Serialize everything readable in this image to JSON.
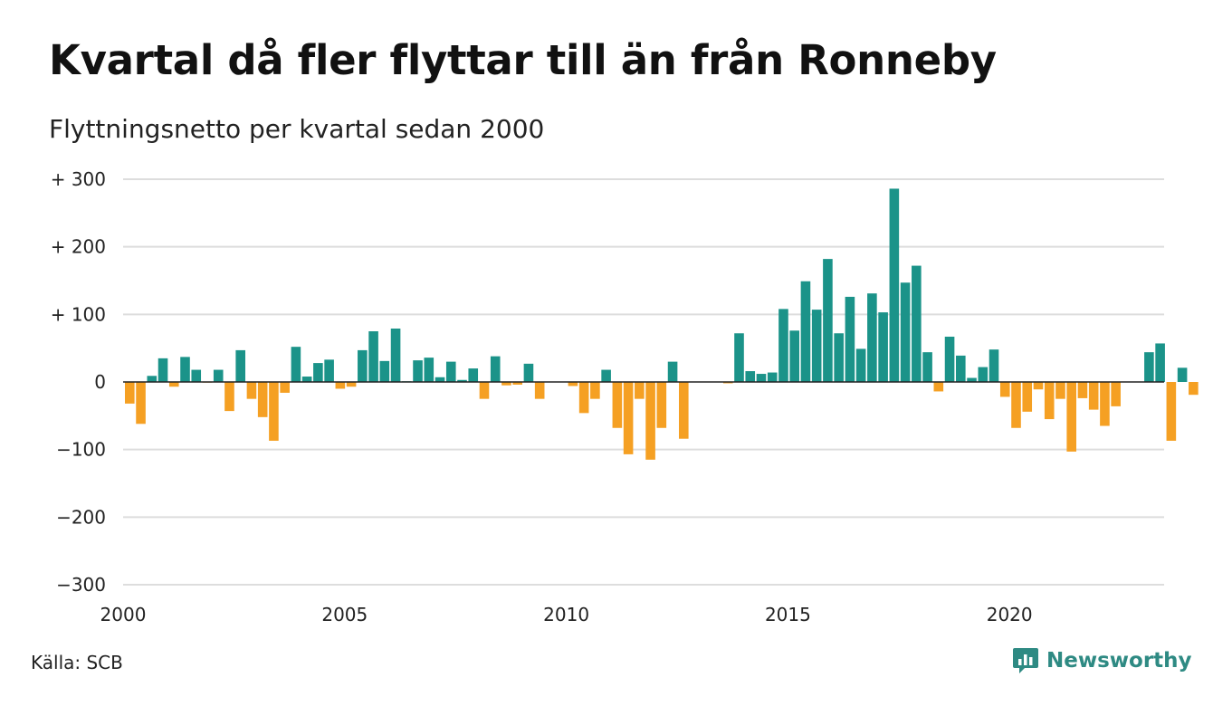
{
  "title": "Kvartal då fler flyttar till än från Ronneby",
  "subtitle": "Flyttningsnetto per kvartal sedan 2000",
  "source": "Källa: SCB",
  "brand": {
    "name": "Newsworthy"
  },
  "colors": {
    "positive": "#1b9389",
    "negative": "#f5a023",
    "grid": "#dddddd",
    "brand": "#2e8a83"
  },
  "chart_data": {
    "type": "bar",
    "xlabel": "",
    "ylabel": "",
    "ylim": [
      -300,
      300
    ],
    "y_ticks": [
      300,
      200,
      100,
      0,
      -100,
      -200,
      -300
    ],
    "y_tick_labels": [
      "+ 300",
      "+ 200",
      "+ 100",
      "0",
      "−100",
      "−200",
      "−300"
    ],
    "x_ticks": [
      "2000",
      "2005",
      "2010",
      "2015",
      "2020"
    ],
    "grid": true,
    "start_year": 2000,
    "values": [
      -32,
      -62,
      9,
      35,
      -7,
      37,
      18,
      -1,
      18,
      -43,
      47,
      -25,
      -52,
      -87,
      -16,
      52,
      8,
      28,
      33,
      -10,
      -7,
      47,
      75,
      31,
      79,
      1,
      32,
      36,
      7,
      30,
      3,
      20,
      -25,
      38,
      -5,
      -4,
      27,
      -25,
      0,
      0,
      -6,
      -46,
      -25,
      18,
      -68,
      -107,
      -25,
      -115,
      -68,
      30,
      -84,
      0,
      0,
      0,
      -2,
      72,
      16,
      12,
      14,
      108,
      76,
      149,
      107,
      182,
      72,
      126,
      49,
      131,
      103,
      286,
      147,
      172,
      44,
      -14,
      67,
      39,
      6,
      22,
      48,
      -22,
      -68,
      -44,
      -11,
      -55,
      -25,
      -103,
      -24,
      -41,
      -65,
      -36,
      0,
      0,
      44,
      57,
      -87,
      21,
      -19
    ]
  }
}
